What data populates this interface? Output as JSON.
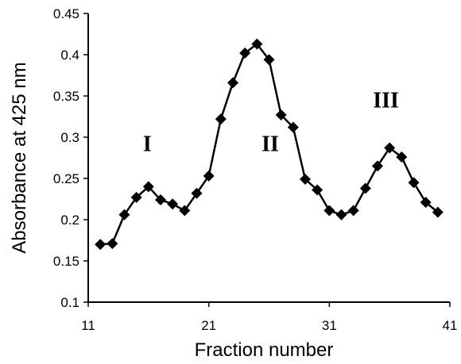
{
  "chart_data": {
    "type": "line",
    "title": "",
    "xlabel": "Fraction number",
    "ylabel": "Absorbance at 425 nm",
    "xlim": [
      11,
      41
    ],
    "ylim": [
      0.1,
      0.45
    ],
    "xticks": [
      11,
      21,
      31,
      41
    ],
    "xtick_labels": [
      "11",
      "21",
      "31",
      "41"
    ],
    "yticks": [
      0.1,
      0.15,
      0.2,
      0.25,
      0.3,
      0.35,
      0.4,
      0.45
    ],
    "ytick_labels": [
      "0.1",
      "0.15",
      "0.2",
      "0.25",
      "0.3",
      "0.35",
      "0.4",
      "0.45"
    ],
    "grid": false,
    "legend": "none",
    "series": [
      {
        "marker": "diamond",
        "color": "#000000",
        "x": [
          12,
          13,
          14,
          15,
          16,
          17,
          18,
          19,
          20,
          21,
          22,
          23,
          24,
          25,
          26,
          27,
          28,
          29,
          30,
          31,
          32,
          33,
          34,
          35,
          36,
          37,
          38,
          39,
          40
        ],
        "y": [
          0.17,
          0.171,
          0.206,
          0.227,
          0.24,
          0.224,
          0.219,
          0.211,
          0.232,
          0.253,
          0.322,
          0.366,
          0.402,
          0.413,
          0.394,
          0.327,
          0.312,
          0.249,
          0.236,
          0.211,
          0.206,
          0.211,
          0.238,
          0.265,
          0.287,
          0.276,
          0.245,
          0.221,
          0.209
        ]
      }
    ],
    "annotations": [
      {
        "text": "I",
        "x": 15.9,
        "y": 0.283
      },
      {
        "text": "II",
        "x": 26.1,
        "y": 0.283
      },
      {
        "text": "III",
        "x": 35.7,
        "y": 0.336
      }
    ]
  }
}
